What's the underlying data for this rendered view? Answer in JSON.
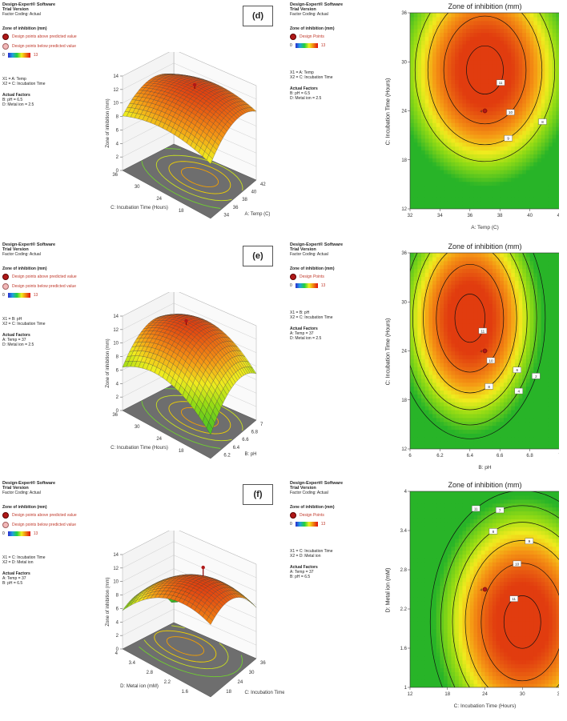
{
  "software": {
    "name": "Design-Expert® Software",
    "version": "Trial Version",
    "coding": "Factor Coding: Actual"
  },
  "legend_surface": {
    "heading": "Zone of inhibition (mm)",
    "above": "Design points above predicted value",
    "below": "Design points below predicted value",
    "min": "0",
    "max": "13"
  },
  "legend_contour": {
    "heading": "Zone of inhibition (mm)",
    "points": "Design Points",
    "min": "0",
    "max": "13"
  },
  "actual_factors_head": "Actual Factors",
  "panels": [
    {
      "label": "(d)",
      "x1": "X1 = A: Temp",
      "x2": "X2 = C: Incubation Time",
      "f1": "B: pH = 6.5",
      "f2": "D: Metal ion = 2.5"
    },
    {
      "label": "(e)",
      "x1": "X1 = B: pH",
      "x2": "X2 = C: Incubation Time",
      "f1": "A: Temp = 37",
      "f2": "D: Metal ion = 2.5"
    },
    {
      "label": "(f)",
      "x1": "X1 = C: Incubation Time",
      "x2": "X2 = D: Metal ion",
      "f1": "A: Temp = 37",
      "f2": "B: pH = 6.5"
    }
  ],
  "chart_data": [
    {
      "type": "surface",
      "zlabel": "Zone of inhibition (mm)",
      "zticks": [
        "0",
        "2",
        "4",
        "6",
        "8",
        "10",
        "12",
        "14"
      ],
      "xlabel": "A: Temp (C)",
      "xticks": [
        "32",
        "34",
        "36",
        "38",
        "40",
        "42"
      ],
      "ylabel": "C: Incubation Time (Hours)",
      "yticks": [
        "12",
        "18",
        "24",
        "30",
        "36"
      ],
      "peak": 13
    },
    {
      "type": "contour",
      "title": "Zone of inhibition (mm)",
      "xlabel": "A: Temp (C)",
      "xticks": [
        "32",
        "34",
        "36",
        "38",
        "40",
        "42"
      ],
      "ylabel": "C: Incubation Time (Hours)",
      "yticks": [
        "12",
        "18",
        "24",
        "30",
        "36"
      ],
      "xlim": [
        32,
        42
      ],
      "ylim": [
        12,
        36
      ],
      "center": [
        37,
        29
      ],
      "contour_labels": [
        "11",
        "10",
        "9",
        "8"
      ],
      "design_point": {
        "x": 37,
        "y": 24,
        "label": "4"
      }
    },
    {
      "type": "surface",
      "zlabel": "Zone of inhibition (mm)",
      "zticks": [
        "0",
        "2",
        "4",
        "6",
        "8",
        "10",
        "12",
        "14"
      ],
      "xlabel": "B: pH",
      "xticks": [
        "6",
        "6.2",
        "6.4",
        "6.6",
        "6.8",
        "7"
      ],
      "ylabel": "C: Incubation Time (Hours)",
      "yticks": [
        "12",
        "18",
        "24",
        "30",
        "36"
      ],
      "peak": 13
    },
    {
      "type": "contour",
      "title": "Zone of inhibition (mm)",
      "xlabel": "B: pH",
      "xticks": [
        "6",
        "6.2",
        "6.4",
        "6.6",
        "6.8",
        "7"
      ],
      "ylabel": "C: Incubation Time (Hours)",
      "yticks": [
        "12",
        "18",
        "24",
        "30",
        "36"
      ],
      "xlim": [
        6,
        7
      ],
      "ylim": [
        12,
        36
      ],
      "center": [
        6.4,
        28
      ],
      "contour_labels": [
        "11",
        "10",
        "8",
        "6",
        "4",
        "2"
      ],
      "design_point": {
        "x": 6.5,
        "y": 24,
        "label": "4"
      }
    },
    {
      "type": "surface",
      "zlabel": "Zone of inhibition (mm)",
      "zticks": [
        "0",
        "2",
        "4",
        "6",
        "8",
        "10",
        "12",
        "14"
      ],
      "xlabel": "C: Incubation Time (Hours)",
      "xticks": [
        "12",
        "18",
        "24",
        "30",
        "36"
      ],
      "ylabel": "D: Metal ion (mM)",
      "yticks": [
        "1",
        "1.6",
        "2.2",
        "2.8",
        "3.4",
        "4"
      ],
      "peak": 13
    },
    {
      "type": "contour",
      "title": "Zone of inhibition (mm)",
      "xlabel": "C: Incubation Time (Hours)",
      "xticks": [
        "12",
        "18",
        "24",
        "30",
        "36"
      ],
      "ylabel": "D: Metal ion (mM)",
      "yticks": [
        "1",
        "1.6",
        "2.2",
        "2.8",
        "3.4",
        "4"
      ],
      "xlim": [
        12,
        36
      ],
      "ylim": [
        1,
        4
      ],
      "center": [
        30,
        2.0
      ],
      "contour_labels": [
        "11",
        "10",
        "9",
        "8",
        "7",
        "11"
      ],
      "design_point": {
        "x": 24,
        "y": 2.5,
        "label": "4"
      }
    }
  ]
}
